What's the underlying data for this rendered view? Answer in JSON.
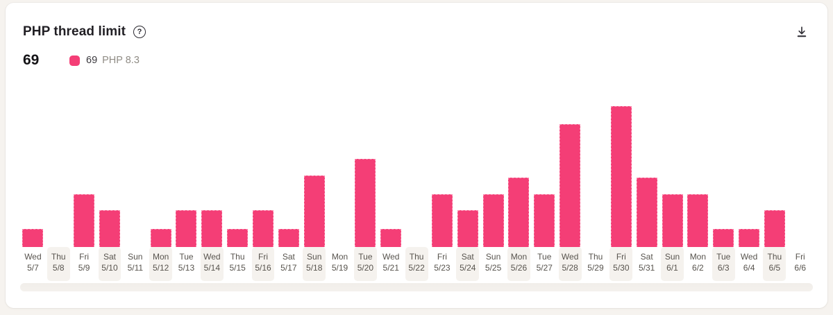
{
  "card": {
    "title": "PHP thread limit",
    "summary_value": "69",
    "legend": {
      "value": "69",
      "label": "PHP 8.3",
      "swatch_color": "#f43e76"
    }
  },
  "icons": {
    "help_glyph": "?",
    "help": "question-mark-circle-icon",
    "download": "download-icon"
  },
  "colors": {
    "accent_pink": "#f43e76",
    "bar_border_pink": "#fa86ab",
    "page_background": "#f6f3ef",
    "card_background": "#ffffff",
    "label_stripe": "#f5f2ee",
    "scrollbar_track": "#f2efeb",
    "axis_label_text": "#57534d",
    "legend_label_text": "#908c85",
    "title_text": "#211f24"
  },
  "chart_data": {
    "type": "bar",
    "title": "PHP thread limit",
    "xlabel": "",
    "ylabel": "",
    "ylim": [
      0,
      69
    ],
    "grid": false,
    "legend_position": "top-left",
    "categories": [
      {
        "day": "Wed",
        "date": "5/7"
      },
      {
        "day": "Thu",
        "date": "5/8"
      },
      {
        "day": "Fri",
        "date": "5/9"
      },
      {
        "day": "Sat",
        "date": "5/10"
      },
      {
        "day": "Sun",
        "date": "5/11"
      },
      {
        "day": "Mon",
        "date": "5/12"
      },
      {
        "day": "Tue",
        "date": "5/13"
      },
      {
        "day": "Wed",
        "date": "5/14"
      },
      {
        "day": "Thu",
        "date": "5/15"
      },
      {
        "day": "Fri",
        "date": "5/16"
      },
      {
        "day": "Sat",
        "date": "5/17"
      },
      {
        "day": "Sun",
        "date": "5/18"
      },
      {
        "day": "Mon",
        "date": "5/19"
      },
      {
        "day": "Tue",
        "date": "5/20"
      },
      {
        "day": "Wed",
        "date": "5/21"
      },
      {
        "day": "Thu",
        "date": "5/22"
      },
      {
        "day": "Fri",
        "date": "5/23"
      },
      {
        "day": "Sat",
        "date": "5/24"
      },
      {
        "day": "Sun",
        "date": "5/25"
      },
      {
        "day": "Mon",
        "date": "5/26"
      },
      {
        "day": "Tue",
        "date": "5/27"
      },
      {
        "day": "Wed",
        "date": "5/28"
      },
      {
        "day": "Thu",
        "date": "5/29"
      },
      {
        "day": "Fri",
        "date": "5/30"
      },
      {
        "day": "Sat",
        "date": "5/31"
      },
      {
        "day": "Sun",
        "date": "6/1"
      },
      {
        "day": "Mon",
        "date": "6/2"
      },
      {
        "day": "Tue",
        "date": "6/3"
      },
      {
        "day": "Wed",
        "date": "6/4"
      },
      {
        "day": "Thu",
        "date": "6/5"
      },
      {
        "day": "Fri",
        "date": "6/6"
      }
    ],
    "series": [
      {
        "name": "PHP 8.3",
        "color": "#f43e76",
        "values": [
          9,
          0,
          26,
          18,
          0,
          9,
          18,
          18,
          9,
          18,
          9,
          35,
          0,
          43,
          9,
          0,
          26,
          18,
          26,
          34,
          26,
          60,
          0,
          69,
          34,
          26,
          26,
          9,
          9,
          18,
          0
        ]
      }
    ],
    "striped_label_columns": "every second column starting with 5/8"
  }
}
